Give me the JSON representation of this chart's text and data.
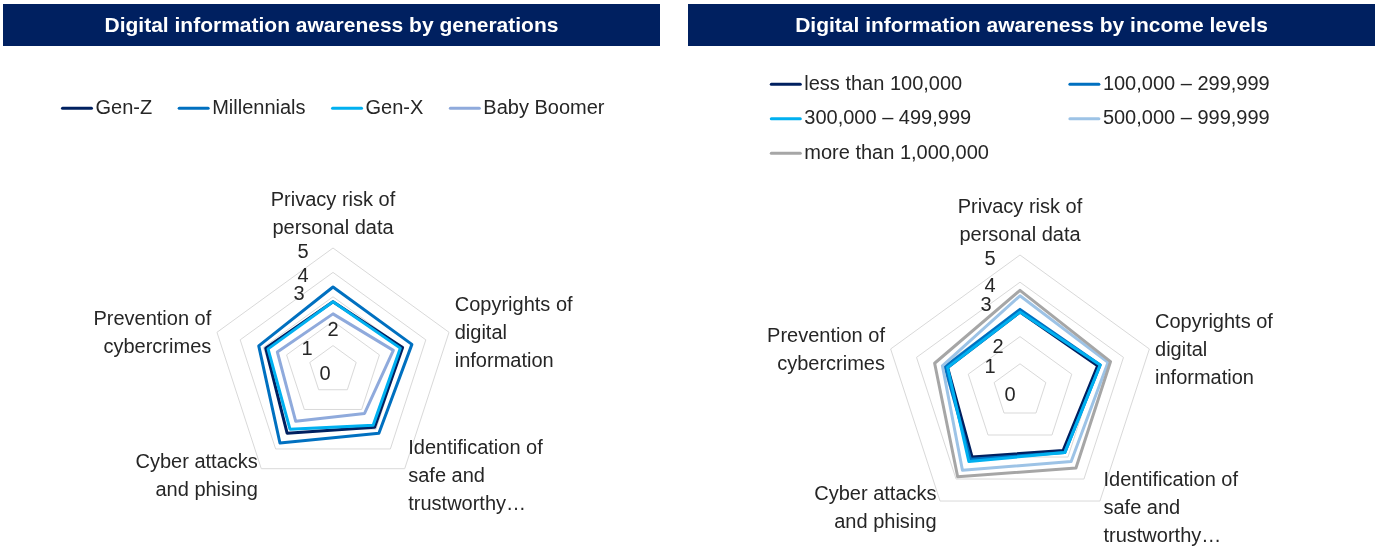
{
  "chart_data": [
    {
      "type": "radar",
      "title": "Digital information awareness by generations",
      "categories": [
        "Privacy risk of personal data",
        "Copyrights of digital information",
        "Identification of safe and trustworthy…",
        "Cyber attacks and phising",
        "Prevention of cybercrimes"
      ],
      "series": [
        {
          "name": "Gen-Z",
          "color": "#002060",
          "values": [
            2.8,
            3.0,
            2.9,
            3.2,
            2.9
          ]
        },
        {
          "name": "Millennials",
          "color": "#0070c0",
          "values": [
            3.4,
            3.4,
            3.2,
            3.7,
            3.2
          ]
        },
        {
          "name": "Gen-X",
          "color": "#00b0f0",
          "values": [
            2.8,
            2.9,
            2.8,
            3.0,
            2.8
          ]
        },
        {
          "name": "Baby Boomer",
          "color": "#8faadc",
          "values": [
            2.3,
            2.6,
            2.2,
            2.6,
            2.4
          ]
        }
      ],
      "ylim": [
        0,
        5
      ],
      "yticks": [
        0,
        1,
        2,
        3,
        4,
        5
      ],
      "grid": true,
      "legend": "top",
      "marker": "none"
    },
    {
      "type": "radar",
      "title": "Digital information awareness by income levels",
      "categories": [
        "Privacy risk of personal data",
        "Copyrights of digital information",
        "Identification of safe and trustworthy…",
        "Cyber attacks and phising",
        "Prevention of cybercrimes"
      ],
      "series": [
        {
          "name": "less than 100,000",
          "color": "#002060",
          "values": [
            2.9,
            3.0,
            2.7,
            3.0,
            2.8
          ]
        },
        {
          "name": "100,000 – 299,999",
          "color": "#0070c0",
          "values": [
            3.0,
            3.1,
            2.8,
            3.1,
            2.9
          ]
        },
        {
          "name": "300,000 – 499,999",
          "color": "#00b0f0",
          "values": [
            2.9,
            3.1,
            2.8,
            3.2,
            2.8
          ]
        },
        {
          "name": "500,000 – 999,999",
          "color": "#9dc3e6",
          "values": [
            3.5,
            3.4,
            3.2,
            3.6,
            3.0
          ]
        },
        {
          "name": "more than 1,000,000",
          "color": "#a6a6a6",
          "values": [
            3.7,
            3.5,
            3.5,
            3.9,
            3.3
          ]
        }
      ],
      "ylim": [
        0,
        5
      ],
      "yticks": [
        0,
        1,
        2,
        3,
        4,
        5
      ],
      "grid": true,
      "legend": "top",
      "marker": "none"
    }
  ]
}
